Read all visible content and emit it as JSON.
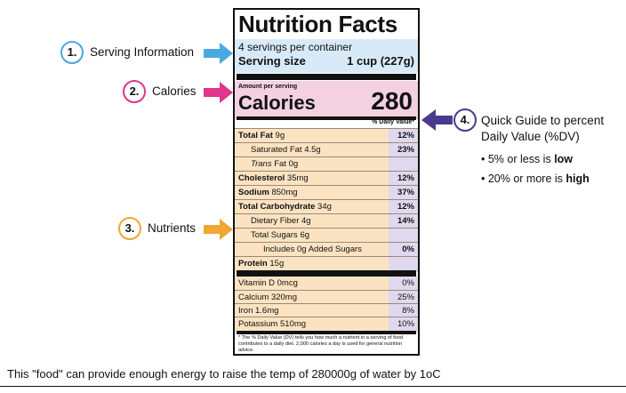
{
  "label": {
    "title": "Nutrition Facts",
    "servings_per_container": "4 servings per container",
    "serving_size_label": "Serving size",
    "serving_size_value": "1 cup (227g)",
    "amount_per_serving": "Amount per serving",
    "calories_label": "Calories",
    "calories_value": "280",
    "dv_header": "% Daily Value*",
    "nutrients": [
      {
        "name_bold": "Total Fat",
        "name_rest": " 9g",
        "pct": "12%"
      },
      {
        "name_bold": "",
        "name_rest": "Saturated Fat 4.5g",
        "pct": "23%"
      },
      {
        "name_bold": "",
        "name_italic": "Trans",
        "name_rest": " Fat 0g",
        "pct": ""
      },
      {
        "name_bold": "Cholesterol",
        "name_rest": " 35mg",
        "pct": "12%"
      },
      {
        "name_bold": "Sodium",
        "name_rest": " 850mg",
        "pct": "37%"
      },
      {
        "name_bold": "Total Carbohydrate",
        "name_rest": " 34g",
        "pct": "12%"
      },
      {
        "name_bold": "",
        "name_rest": "Dietary Fiber 4g",
        "pct": "14%"
      },
      {
        "name_bold": "",
        "name_rest": "Total Sugars 6g",
        "pct": ""
      },
      {
        "name_bold": "",
        "name_rest": "Includes 0g Added Sugars",
        "pct": "0%"
      },
      {
        "name_bold": "Protein",
        "name_rest": " 15g",
        "pct": ""
      }
    ],
    "vitamins": [
      {
        "name": "Vitamin D 0mcg",
        "pct": "0%"
      },
      {
        "name": "Calcium 320mg",
        "pct": "25%"
      },
      {
        "name": "Iron 1.6mg",
        "pct": "8%"
      },
      {
        "name": "Potassium 510mg",
        "pct": "10%"
      }
    ],
    "footnote": "* The % Daily Value (DV) tells you how much a nutrient in a serving of food contributes to a daily diet. 2,000 calories a day is used for general nutrition advice."
  },
  "callouts": {
    "one_num": "1.",
    "one_text": "Serving Information",
    "two_num": "2.",
    "two_text": "Calories",
    "three_num": "3.",
    "three_text": "Nutrients",
    "four_num": "4.",
    "four_line1": "Quick Guide to percent",
    "four_line2": "Daily Value (%DV)",
    "bullet1_prefix": "• 5% or less is ",
    "bullet1_bold": "low",
    "bullet2_prefix": "• 20% or more is ",
    "bullet2_bold": "high"
  },
  "caption": "This \"food\" can provide enough energy to raise the temp of 280000g of water by 1oC",
  "colors": {
    "blue": "#4aa8e0",
    "pink": "#e0358a",
    "orange": "#f0a733",
    "purple": "#4a3a8c"
  }
}
